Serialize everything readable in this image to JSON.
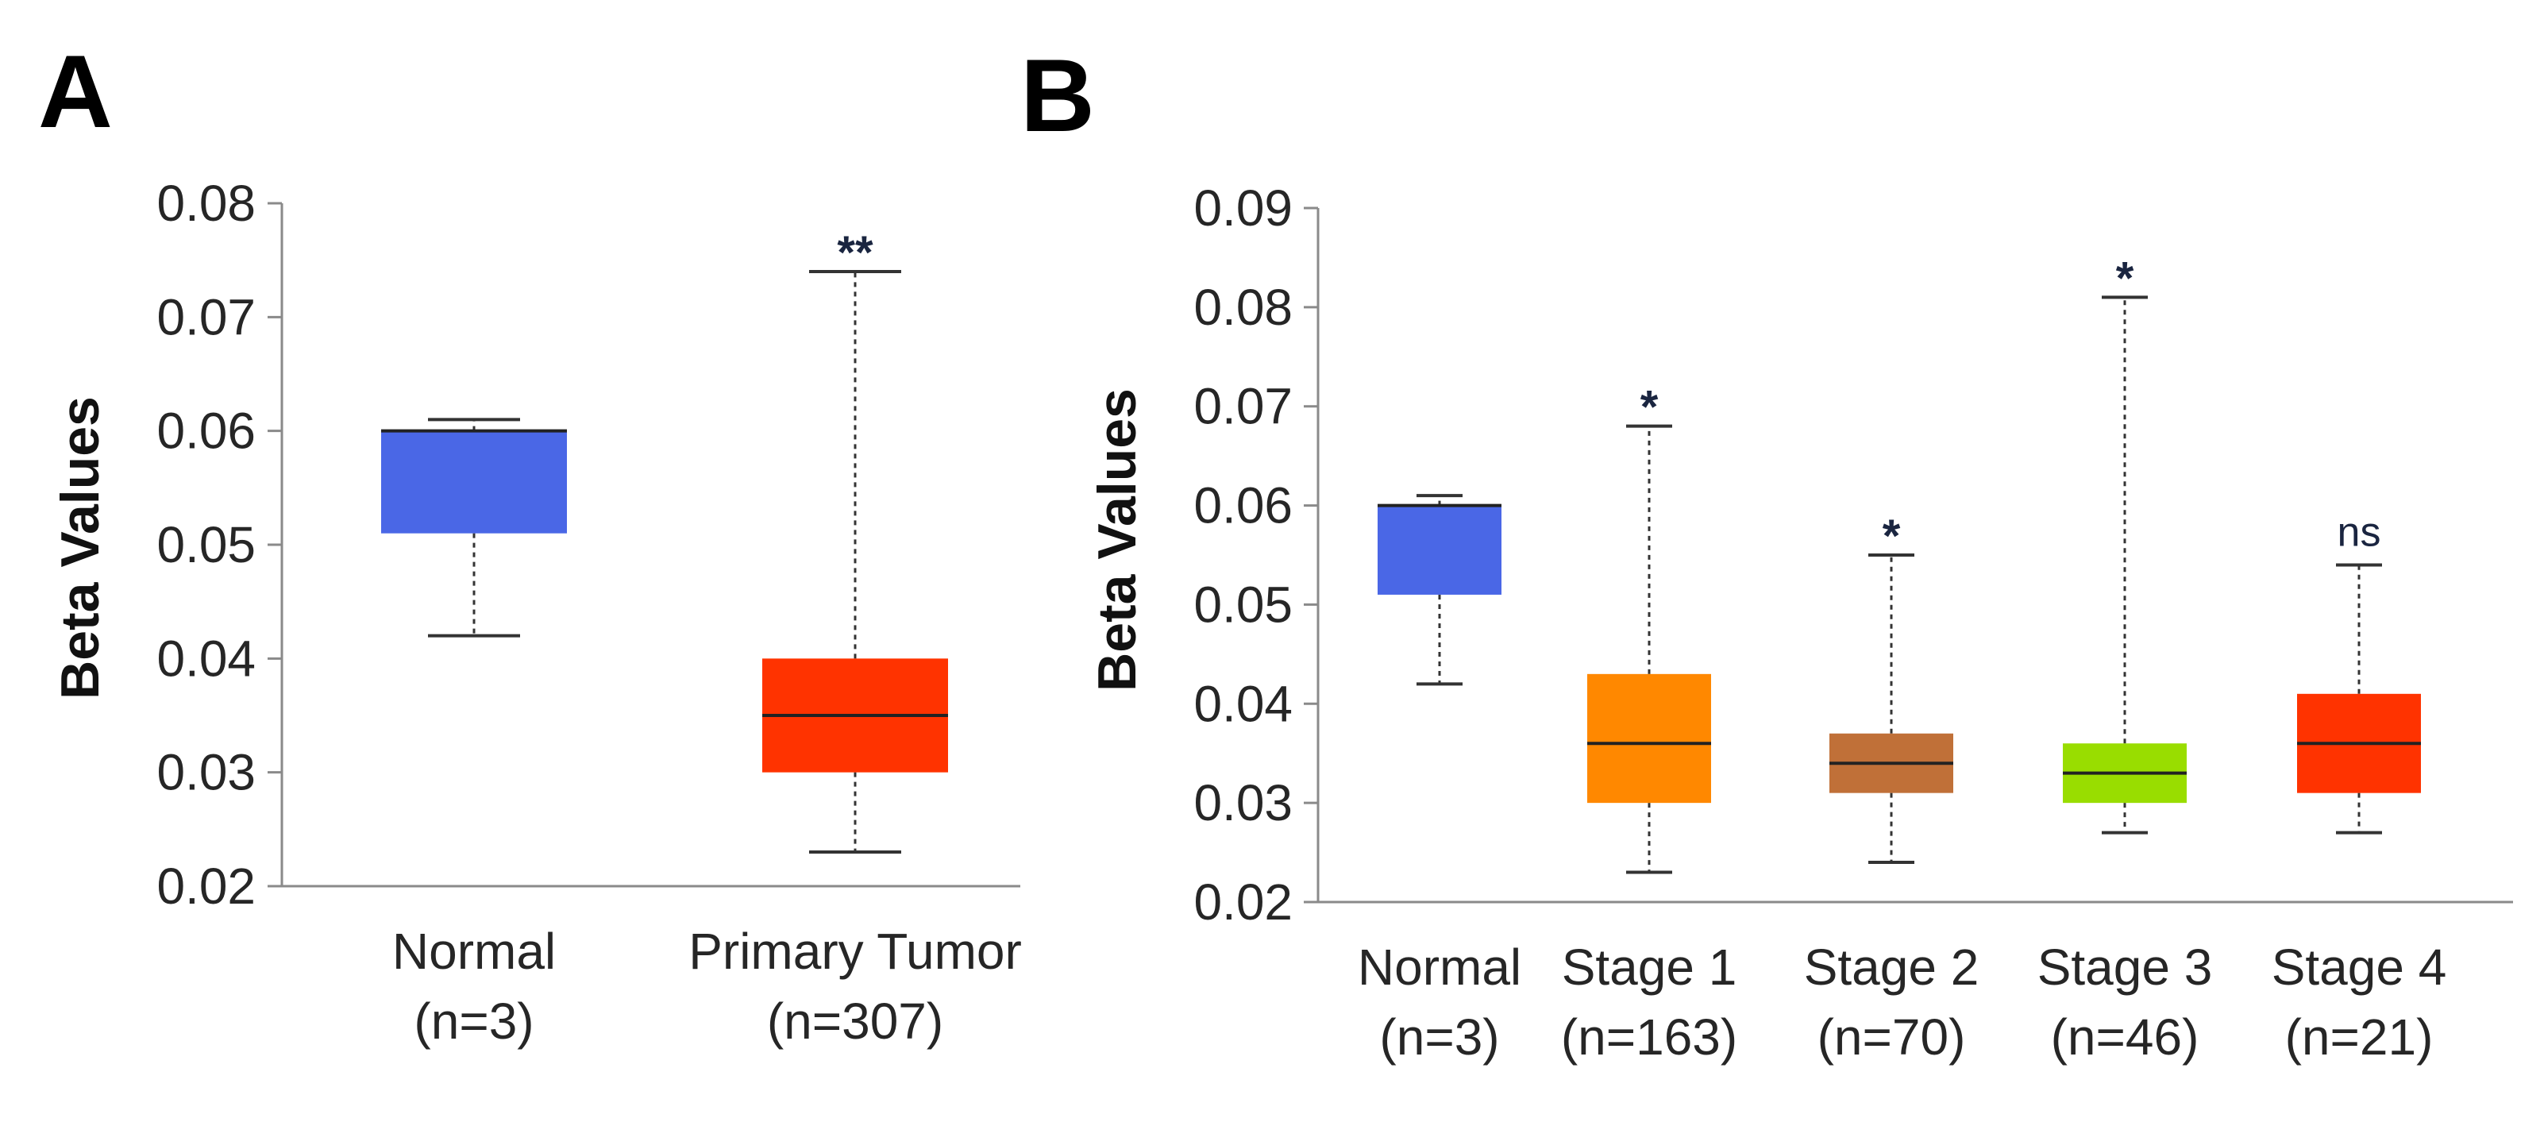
{
  "chart_data": [
    {
      "panel": "A",
      "type": "box",
      "title": "",
      "xlabel": "",
      "ylabel": "Beta Values",
      "ylim": [
        0.02,
        0.08
      ],
      "yticks": [
        "0.08",
        "0.07",
        "0.06",
        "0.05",
        "0.04",
        "0.03",
        "0.02"
      ],
      "ytick_values": [
        0.08,
        0.07,
        0.06,
        0.05,
        0.04,
        0.03,
        0.02
      ],
      "groups": [
        {
          "name": "Normal",
          "n_label": "(n=3)",
          "color": "#4a67e6",
          "min": 0.042,
          "q1": 0.051,
          "median": 0.06,
          "q3": 0.06,
          "max": 0.061,
          "significance": ""
        },
        {
          "name": "Primary Tumor",
          "n_label": "(n=307)",
          "color": "#ff3300",
          "min": 0.023,
          "q1": 0.03,
          "median": 0.035,
          "q3": 0.04,
          "max": 0.074,
          "significance": "**"
        }
      ]
    },
    {
      "panel": "B",
      "type": "box",
      "title": "",
      "xlabel": "",
      "ylabel": "Beta Values",
      "ylim": [
        0.02,
        0.09
      ],
      "yticks": [
        "0.09",
        "0.08",
        "0.07",
        "0.06",
        "0.05",
        "0.04",
        "0.03",
        "0.02"
      ],
      "ytick_values": [
        0.09,
        0.08,
        0.07,
        0.06,
        0.05,
        0.04,
        0.03,
        0.02
      ],
      "groups": [
        {
          "name": "Normal",
          "n_label": "(n=3)",
          "color": "#4a67e6",
          "min": 0.042,
          "q1": 0.051,
          "median": 0.06,
          "q3": 0.06,
          "max": 0.061,
          "significance": ""
        },
        {
          "name": "Stage 1",
          "n_label": "(n=163)",
          "color": "#ff8800",
          "min": 0.023,
          "q1": 0.03,
          "median": 0.036,
          "q3": 0.043,
          "max": 0.068,
          "significance": "*"
        },
        {
          "name": "Stage 2",
          "n_label": "(n=70)",
          "color": "#c07038",
          "min": 0.024,
          "q1": 0.031,
          "median": 0.034,
          "q3": 0.037,
          "max": 0.055,
          "significance": "*"
        },
        {
          "name": "Stage 3",
          "n_label": "(n=46)",
          "color": "#99dd00",
          "min": 0.027,
          "q1": 0.03,
          "median": 0.033,
          "q3": 0.036,
          "max": 0.081,
          "significance": "*"
        },
        {
          "name": "Stage 4",
          "n_label": "(n=21)",
          "color": "#ff3300",
          "min": 0.027,
          "q1": 0.031,
          "median": 0.036,
          "q3": 0.041,
          "max": 0.054,
          "significance": "ns"
        }
      ]
    }
  ]
}
